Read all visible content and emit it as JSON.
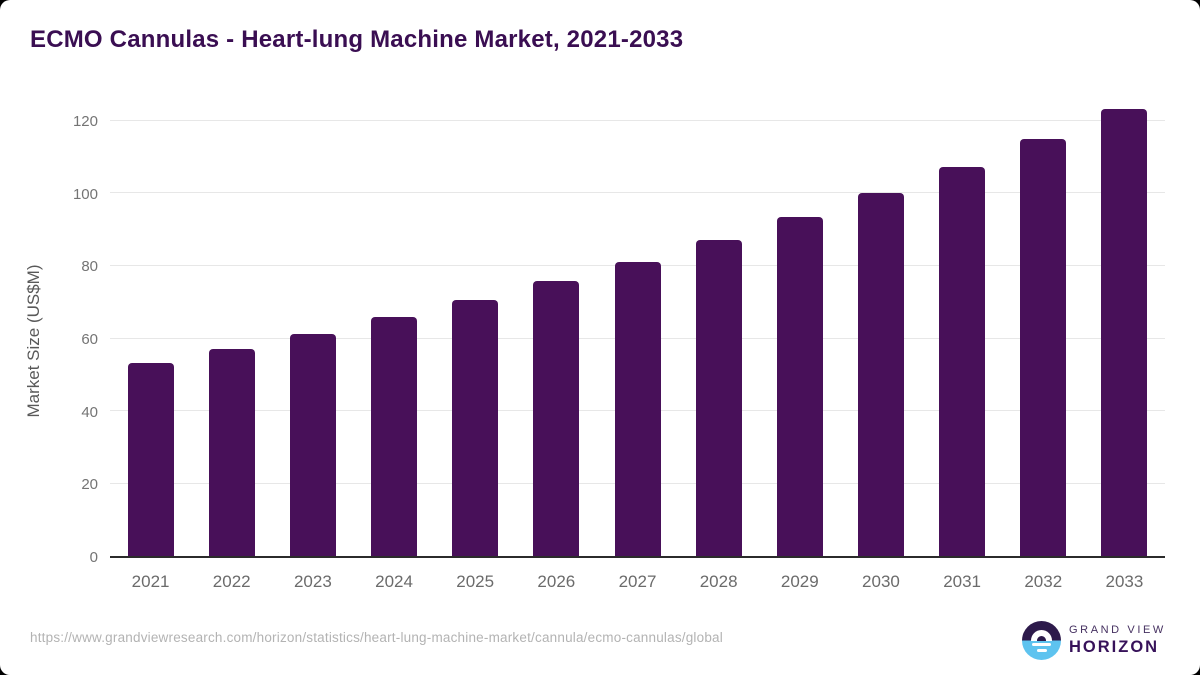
{
  "title": "ECMO Cannulas - Heart-lung Machine Market, 2021-2033",
  "chart_data": {
    "type": "bar",
    "categories": [
      "2021",
      "2022",
      "2023",
      "2024",
      "2025",
      "2026",
      "2027",
      "2028",
      "2029",
      "2030",
      "2031",
      "2032",
      "2033"
    ],
    "values": [
      53.0,
      56.9,
      61.0,
      65.9,
      70.4,
      75.6,
      81.0,
      87.0,
      93.4,
      100.0,
      107.1,
      114.8,
      123.0
    ],
    "title": "ECMO Cannulas - Heart-lung Machine Market, 2021-2033",
    "xlabel": "",
    "ylabel": "Market Size (US$M)",
    "ylim": [
      0,
      120
    ],
    "yticks": [
      0,
      20,
      40,
      60,
      80,
      100,
      120
    ],
    "grid": "horizontal",
    "legend": "none",
    "bar_color": "#481059"
  },
  "footer": {
    "source_url": "https://www.grandviewresearch.com/horizon/statistics/heart-lung-machine-market/cannula/ecmo-cannulas/global"
  },
  "logo": {
    "line1": "GRAND VIEW",
    "line2": "HORIZON"
  },
  "colors": {
    "title_text": "#3a0e52",
    "bar_fill": "#481059",
    "axis_line": "#2b2b2b",
    "gridline": "#e7e7e7",
    "ytick_label": "#747474",
    "xtick_label": "#6b6b6b",
    "axis_title": "#595959",
    "footer_url": "#b3b3b3",
    "logo_purple": "#2d1a4b",
    "logo_blue": "#5ec3ef"
  }
}
